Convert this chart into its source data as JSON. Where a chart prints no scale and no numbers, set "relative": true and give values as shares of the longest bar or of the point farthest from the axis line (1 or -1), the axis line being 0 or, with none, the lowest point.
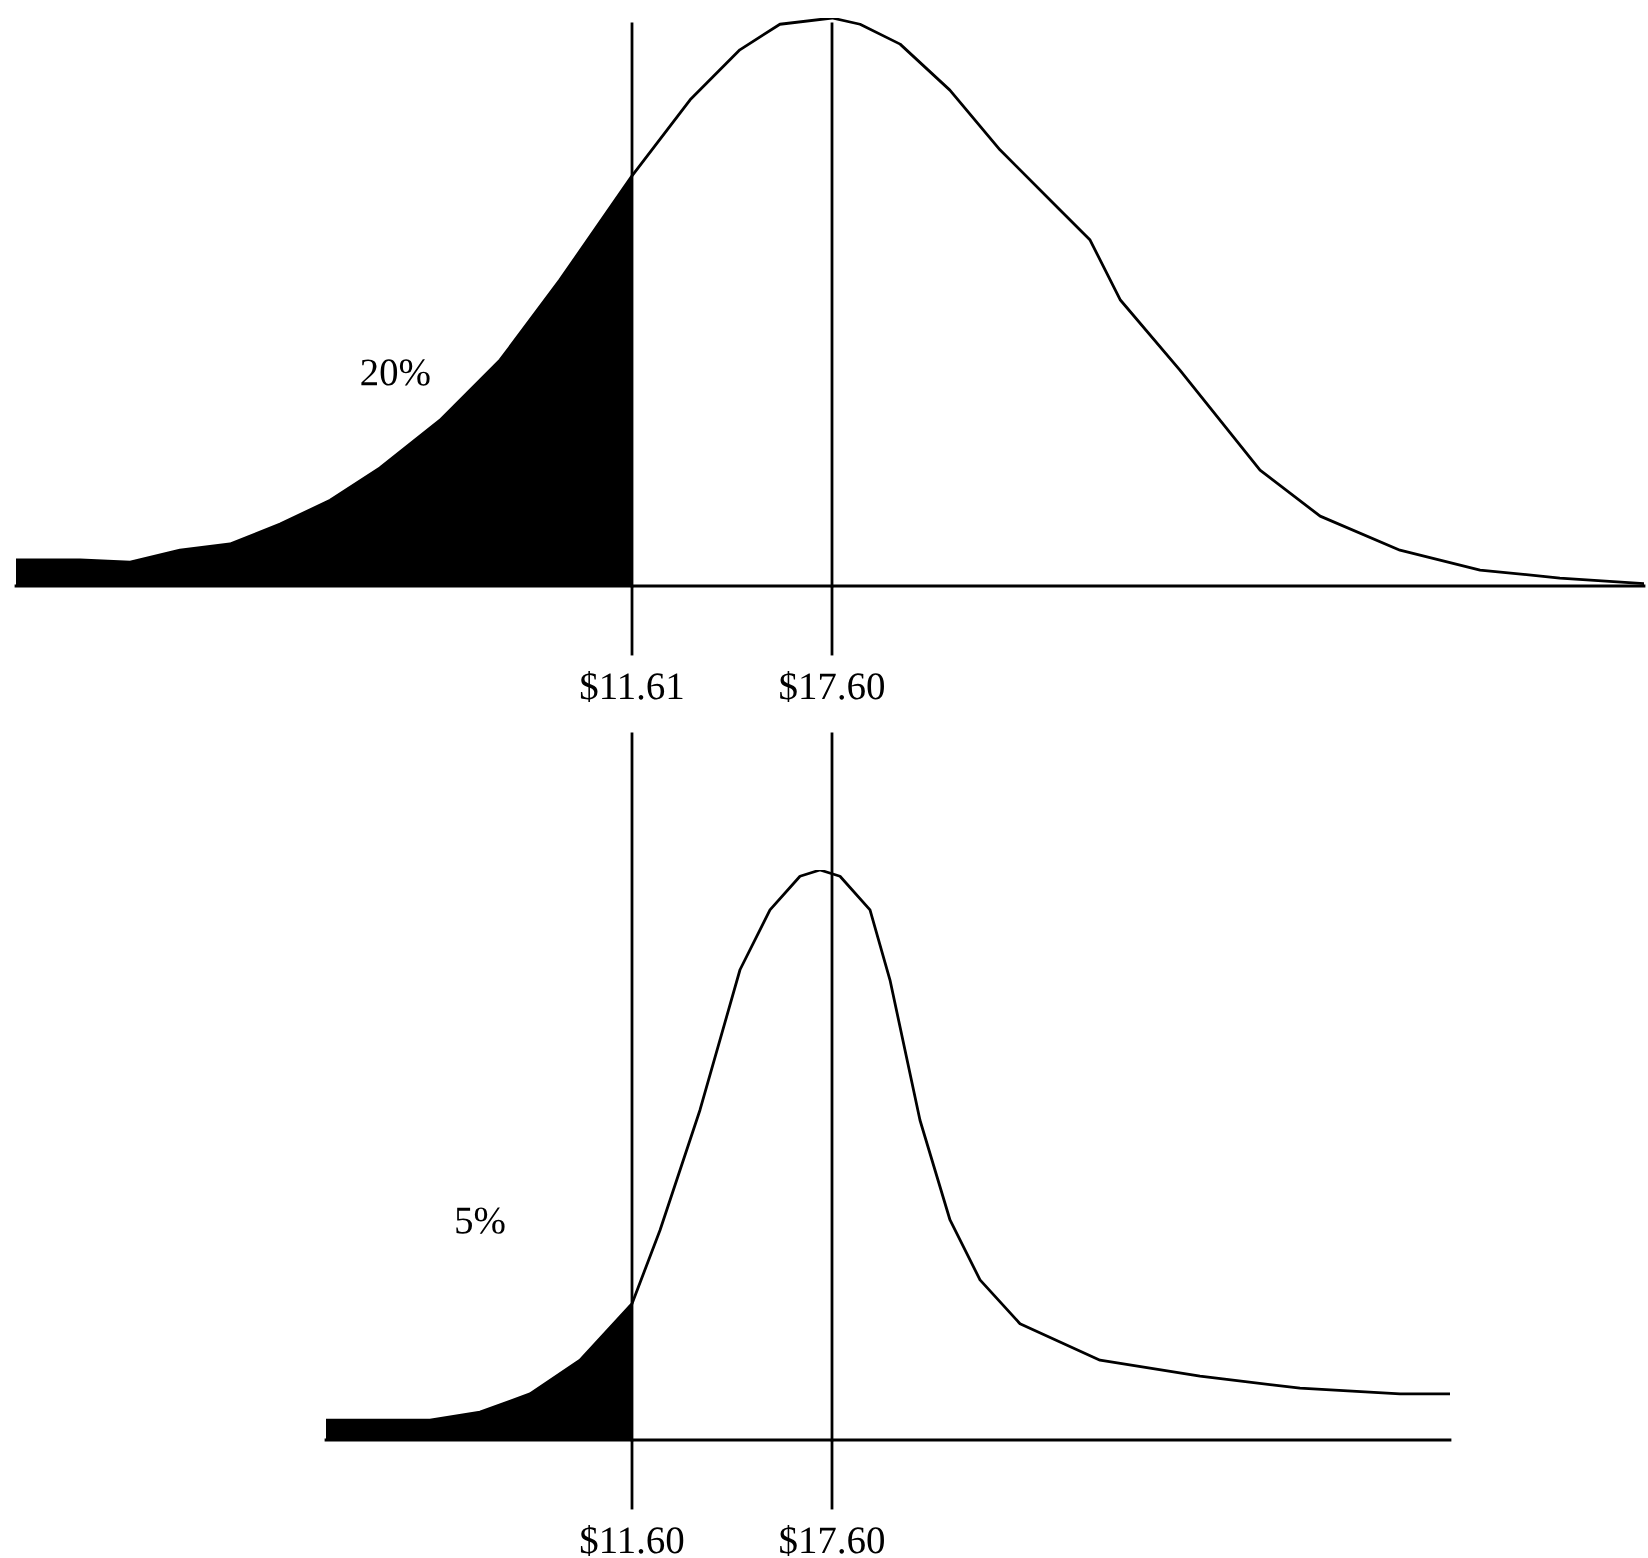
{
  "chart_data": [
    {
      "type": "line",
      "relative": true,
      "tick_labels": "x",
      "grid": false,
      "legend": false,
      "xlim": [
        -6.84,
        41.92
      ],
      "xticks": [
        {
          "value": 11.61,
          "label": "$11.61"
        },
        {
          "value": 17.6,
          "label": "$17.60"
        }
      ],
      "ref_lines": [
        {
          "axis": "x",
          "value": 11.61,
          "color": "#000000"
        },
        {
          "axis": "x",
          "value": 17.6,
          "color": "#000000"
        }
      ],
      "annotations": [
        "20%"
      ],
      "series": [
        {
          "type": "area",
          "color": "#000000",
          "x": [
            -6.84,
            -4.92,
            -3.42,
            -1.93,
            -0.43,
            1.07,
            2.57,
            4.06,
            5.86,
            7.66,
            9.45,
            11.61
          ],
          "values": [
            0.046,
            0.046,
            0.042,
            0.063,
            0.074,
            0.109,
            0.151,
            0.208,
            0.292,
            0.398,
            0.539,
            0.722
          ]
        },
        {
          "color": "#000000",
          "x": [
            -6.84,
            -4.92,
            -3.42,
            -1.93,
            -0.43,
            1.07,
            2.57,
            4.06,
            5.86,
            7.66,
            9.45,
            11.61,
            13.35,
            14.84,
            16.04,
            17.6,
            18.44,
            19.64,
            21.13,
            22.63,
            24.43,
            25.33,
            26.23,
            28.02,
            30.42,
            32.22,
            34.61,
            37.01,
            39.4,
            41.92
          ],
          "values": [
            0.046,
            0.046,
            0.042,
            0.063,
            0.074,
            0.109,
            0.151,
            0.208,
            0.292,
            0.398,
            0.539,
            0.722,
            0.856,
            0.944,
            0.989,
            1,
            0.989,
            0.954,
            0.873,
            0.768,
            0.662,
            0.609,
            0.504,
            0.38,
            0.204,
            0.123,
            0.063,
            0.028,
            0.014,
            0.004
          ]
        }
      ]
    },
    {
      "type": "line",
      "relative": true,
      "tick_labels": "x",
      "grid": false,
      "legend": false,
      "xlim": [
        2.42,
        36.14
      ],
      "xticks": [
        {
          "value": 11.6,
          "label": "$11.60"
        },
        {
          "value": 17.6,
          "label": "$17.60"
        }
      ],
      "ref_lines": [
        {
          "axis": "x",
          "value": 11.6,
          "color": "#000000"
        },
        {
          "axis": "x",
          "value": 17.6,
          "color": "#000000"
        }
      ],
      "annotations": [
        "5%"
      ],
      "series": [
        {
          "type": "area",
          "color": "#000000",
          "x": [
            2.42,
            5.54,
            7.04,
            8.54,
            10.04,
            11.6
          ],
          "values": [
            0.035,
            0.035,
            0.049,
            0.081,
            0.14,
            0.239
          ]
        },
        {
          "color": "#000000",
          "x": [
            2.42,
            5.54,
            7.04,
            8.54,
            10.04,
            11.6,
            12.44,
            13.64,
            14.84,
            15.74,
            16.64,
            17.24,
            17.84,
            18.74,
            19.34,
            20.24,
            21.14,
            22.04,
            23.24,
            25.64,
            28.64,
            31.64,
            34.64,
            36.14
          ],
          "values": [
            0.035,
            0.035,
            0.049,
            0.081,
            0.14,
            0.239,
            0.368,
            0.579,
            0.825,
            0.93,
            0.989,
            1,
            0.989,
            0.93,
            0.807,
            0.561,
            0.386,
            0.281,
            0.204,
            0.14,
            0.112,
            0.091,
            0.081,
            0.081
          ]
        }
      ]
    }
  ]
}
